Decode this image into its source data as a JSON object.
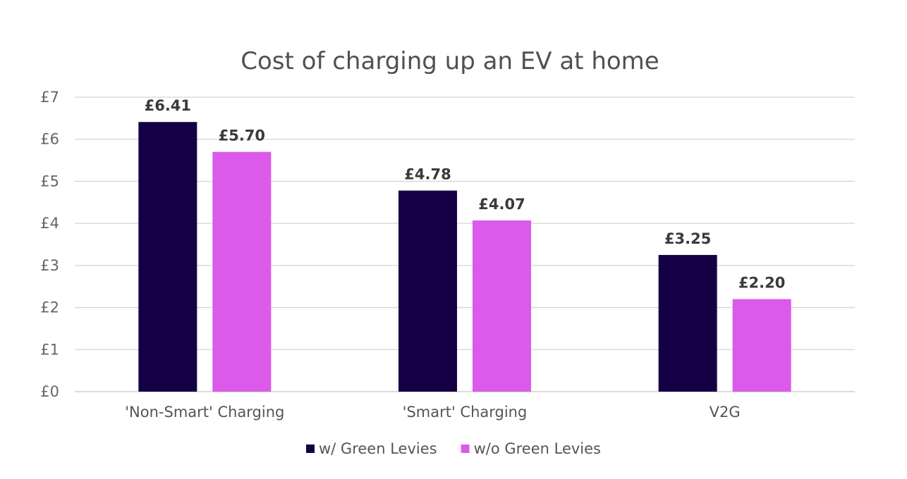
{
  "chart_data": {
    "type": "bar",
    "title": "Cost of charging up an EV at home",
    "xlabel": "",
    "ylabel": "",
    "categories": [
      "'Non-Smart' Charging",
      "'Smart' Charging",
      "V2G"
    ],
    "series": [
      {
        "name": "w/ Green Levies",
        "color": "#160045",
        "values": [
          6.41,
          4.78,
          3.25
        ],
        "labels": [
          "£6.41",
          "£4.78",
          "£3.25"
        ]
      },
      {
        "name": "w/o Green Levies",
        "color": "#db5ae9",
        "values": [
          5.7,
          4.07,
          2.2
        ],
        "labels": [
          "£5.70",
          "£4.07",
          "£2.20"
        ]
      }
    ],
    "ylim": [
      0,
      7
    ],
    "yticks": [
      0,
      1,
      2,
      3,
      4,
      5,
      6,
      7
    ],
    "ytick_labels": [
      "£0",
      "£1",
      "£2",
      "£3",
      "£4",
      "£5",
      "£6",
      "£7"
    ],
    "grid": true,
    "legend_position": "bottom"
  }
}
